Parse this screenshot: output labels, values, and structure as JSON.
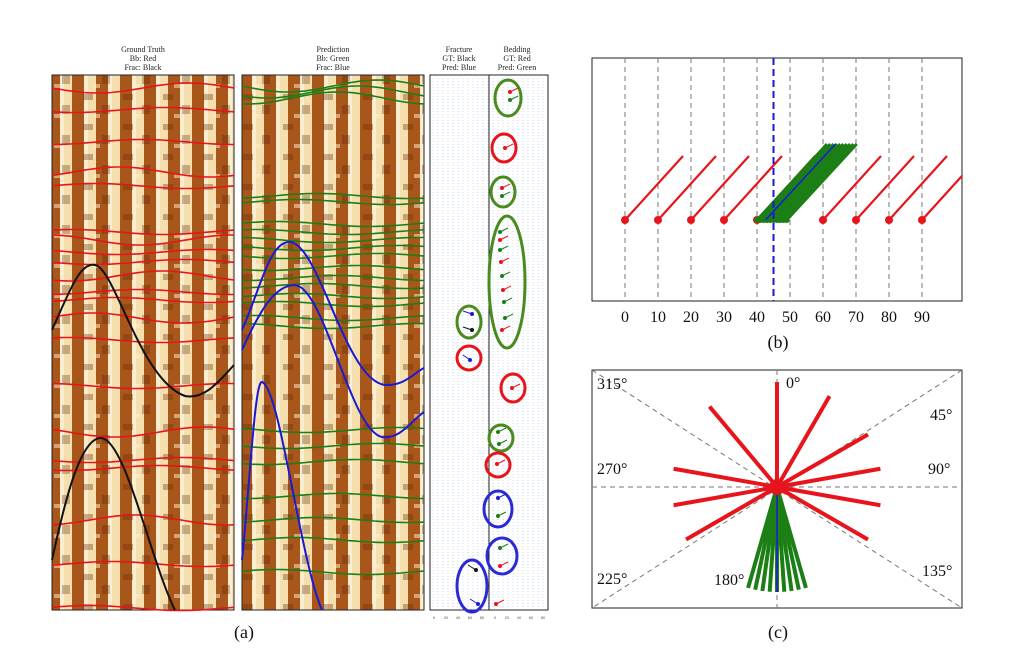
{
  "panel_a": {
    "caption": "(a)",
    "ground_truth": {
      "title": "Ground Truth",
      "line1": "Bb: Red",
      "line2": "Frac: Black"
    },
    "prediction": {
      "title": "Prediction",
      "line1": "Bb: Green",
      "line2": "Frac: Blue"
    },
    "fracture": {
      "title": "Fracture",
      "line1": "GT: Black",
      "line2": "Pred: Blue"
    },
    "bedding": {
      "title": "Bedding",
      "line1": "GT: Red",
      "line2": "Pred: Green"
    },
    "small_ticks_left": [
      "0",
      "20",
      "40",
      "60",
      "80"
    ],
    "small_ticks_right": [
      "0",
      "20",
      "40",
      "60",
      "80"
    ]
  },
  "panel_b": {
    "caption": "(b)",
    "x_ticks": [
      "0",
      "10",
      "20",
      "30",
      "40",
      "50",
      "60",
      "70",
      "80",
      "90"
    ]
  },
  "panel_c": {
    "caption": "(c)",
    "angles": {
      "a0": "0°",
      "a45": "45°",
      "a90": "90°",
      "a135": "135°",
      "a180": "180°",
      "a225": "225°",
      "a270": "270°",
      "a315": "315°"
    }
  },
  "chart_data": [
    {
      "type": "line",
      "panel": "(b)",
      "x_ticks": [
        0,
        10,
        20,
        30,
        40,
        50,
        60,
        70,
        80,
        90
      ],
      "ground_truth_dips": [
        0,
        10,
        20,
        30,
        40,
        60,
        70,
        80,
        90
      ],
      "predicted_dips": [
        40,
        41,
        42,
        43,
        44,
        45,
        46,
        47,
        48,
        49
      ],
      "reference_dip": 45,
      "colors": {
        "ground_truth": "#e8141b",
        "prediction": "#1c7f16",
        "reference": "#1a1ad6"
      }
    },
    {
      "type": "rose",
      "panel": "(c)",
      "ground_truth_azimuths": [
        0,
        30,
        60,
        80,
        100,
        120,
        240,
        260,
        280,
        320
      ],
      "predicted_azimuths": [
        164,
        168,
        172,
        176,
        180,
        184,
        188,
        192,
        196
      ],
      "reference_azimuth": 180,
      "colors": {
        "ground_truth": "#e8141b",
        "prediction": "#1c7f16",
        "reference": "#1a1ad6"
      }
    }
  ]
}
